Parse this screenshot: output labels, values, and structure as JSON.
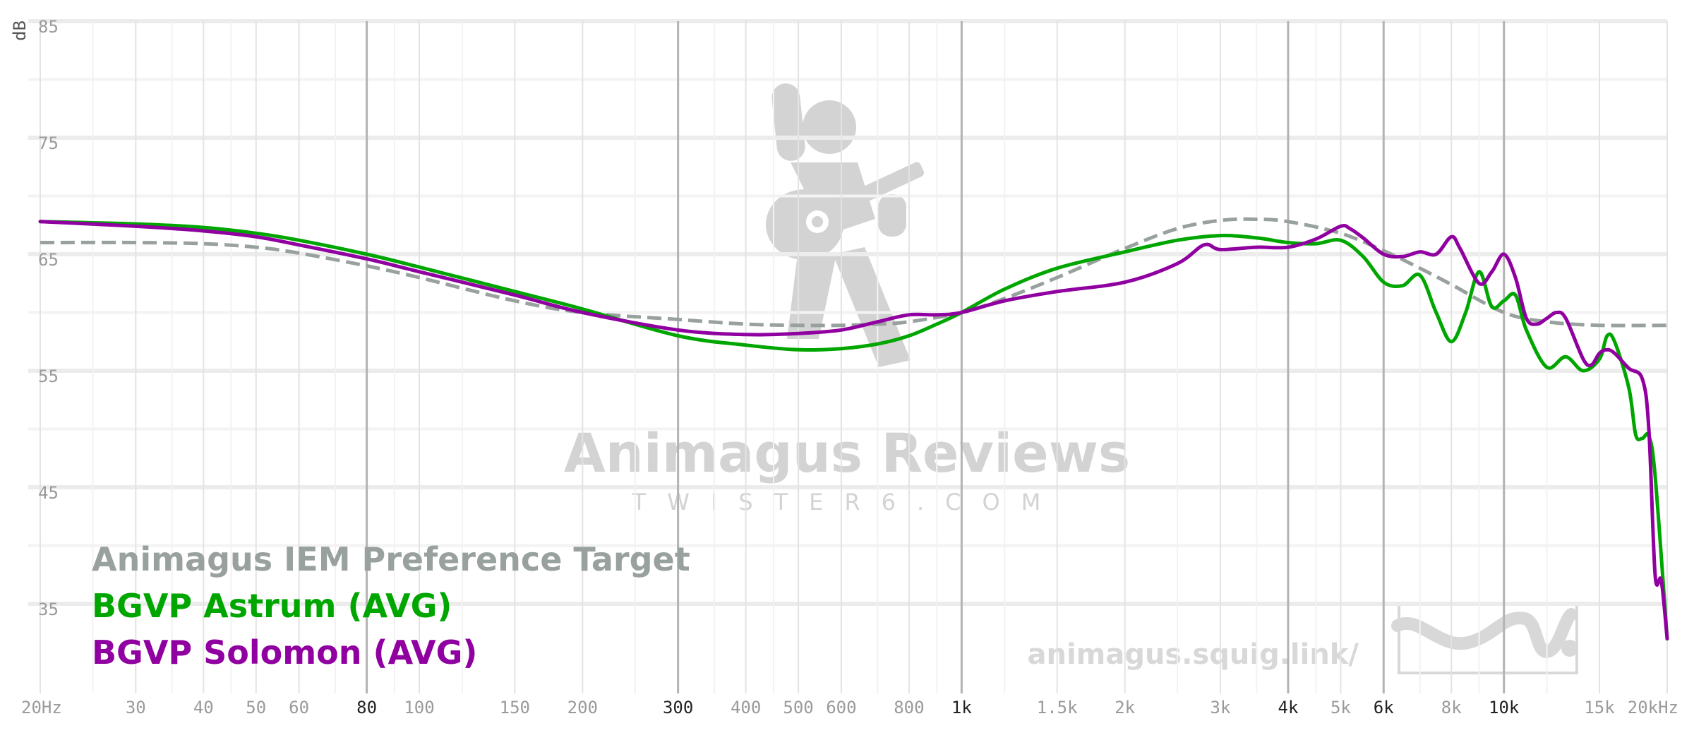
{
  "chart_data": {
    "type": "line",
    "ylabel": "dB",
    "xlabel": "",
    "x_scale": "log",
    "xlim": [
      20,
      20000
    ],
    "ylim": [
      30,
      87
    ],
    "y_ticks": [
      {
        "value": 85,
        "label": "85"
      },
      {
        "value": 75,
        "label": "75"
      },
      {
        "value": 65,
        "label": "65"
      },
      {
        "value": 55,
        "label": "55"
      },
      {
        "value": 45,
        "label": "45"
      },
      {
        "value": 35,
        "label": "35"
      }
    ],
    "y_minor_lines": [
      80,
      70,
      60,
      50,
      40
    ],
    "x_ticks": [
      {
        "value": 20,
        "label": "20Hz",
        "major": false
      },
      {
        "value": 30,
        "label": "30",
        "major": false
      },
      {
        "value": 40,
        "label": "40",
        "major": false
      },
      {
        "value": 50,
        "label": "50",
        "major": false
      },
      {
        "value": 60,
        "label": "60",
        "major": false
      },
      {
        "value": 80,
        "label": "80",
        "major": true
      },
      {
        "value": 100,
        "label": "100",
        "major": false
      },
      {
        "value": 150,
        "label": "150",
        "major": false
      },
      {
        "value": 200,
        "label": "200",
        "major": false
      },
      {
        "value": 300,
        "label": "300",
        "major": true
      },
      {
        "value": 400,
        "label": "400",
        "major": false
      },
      {
        "value": 500,
        "label": "500",
        "major": false
      },
      {
        "value": 600,
        "label": "600",
        "major": false
      },
      {
        "value": 800,
        "label": "800",
        "major": false
      },
      {
        "value": 1000,
        "label": "1k",
        "major": true
      },
      {
        "value": 1500,
        "label": "1.5k",
        "major": false
      },
      {
        "value": 2000,
        "label": "2k",
        "major": false
      },
      {
        "value": 3000,
        "label": "3k",
        "major": false
      },
      {
        "value": 4000,
        "label": "4k",
        "major": true
      },
      {
        "value": 5000,
        "label": "5k",
        "major": false
      },
      {
        "value": 6000,
        "label": "6k",
        "major": true
      },
      {
        "value": 8000,
        "label": "8k",
        "major": false
      },
      {
        "value": 10000,
        "label": "10k",
        "major": true
      },
      {
        "value": 15000,
        "label": "15k",
        "major": false
      },
      {
        "value": 20000,
        "label": "20kHz",
        "major": false
      }
    ],
    "x_minor_lines": [
      25,
      35,
      45,
      70,
      90,
      120,
      250,
      350,
      450,
      700,
      900,
      1200,
      2500,
      3500,
      4500,
      7000,
      9000,
      12000
    ],
    "grid": true,
    "legend_position": "bottom-left",
    "series": [
      {
        "name": "Animagus IEM Preference Target",
        "color": "#99a19e",
        "dash": true,
        "points": [
          [
            20,
            66.0
          ],
          [
            30,
            66.0
          ],
          [
            40,
            65.9
          ],
          [
            50,
            65.6
          ],
          [
            60,
            65.1
          ],
          [
            80,
            64.0
          ],
          [
            100,
            63.0
          ],
          [
            150,
            61.0
          ],
          [
            200,
            60.0
          ],
          [
            300,
            59.4
          ],
          [
            400,
            59.0
          ],
          [
            500,
            58.9
          ],
          [
            600,
            58.9
          ],
          [
            700,
            59.0
          ],
          [
            800,
            59.2
          ],
          [
            1000,
            60.0
          ],
          [
            1200,
            61.2
          ],
          [
            1500,
            63.0
          ],
          [
            2000,
            65.5
          ],
          [
            2500,
            67.2
          ],
          [
            3000,
            67.9
          ],
          [
            3500,
            68.0
          ],
          [
            4000,
            67.8
          ],
          [
            5000,
            66.8
          ],
          [
            6000,
            65.3
          ],
          [
            7000,
            63.8
          ],
          [
            8000,
            62.4
          ],
          [
            10000,
            60.0
          ],
          [
            12000,
            59.2
          ],
          [
            15000,
            58.9
          ],
          [
            20000,
            58.9
          ]
        ]
      },
      {
        "name": "BGVP Astrum (AVG)",
        "color": "#00a600",
        "dash": false,
        "points": [
          [
            20,
            67.8
          ],
          [
            30,
            67.6
          ],
          [
            40,
            67.3
          ],
          [
            50,
            66.8
          ],
          [
            60,
            66.2
          ],
          [
            80,
            65.0
          ],
          [
            100,
            63.9
          ],
          [
            150,
            61.8
          ],
          [
            200,
            60.3
          ],
          [
            300,
            58.0
          ],
          [
            400,
            57.2
          ],
          [
            500,
            56.8
          ],
          [
            600,
            56.9
          ],
          [
            700,
            57.3
          ],
          [
            800,
            58.0
          ],
          [
            900,
            59.0
          ],
          [
            1000,
            60.0
          ],
          [
            1200,
            62.0
          ],
          [
            1500,
            63.8
          ],
          [
            2000,
            65.2
          ],
          [
            2500,
            66.2
          ],
          [
            3000,
            66.6
          ],
          [
            3500,
            66.4
          ],
          [
            4000,
            66.0
          ],
          [
            4500,
            65.9
          ],
          [
            5000,
            66.2
          ],
          [
            5500,
            64.8
          ],
          [
            6000,
            62.6
          ],
          [
            6500,
            62.3
          ],
          [
            7000,
            63.2
          ],
          [
            7500,
            60.0
          ],
          [
            8000,
            57.5
          ],
          [
            8500,
            60.0
          ],
          [
            9000,
            63.5
          ],
          [
            9500,
            60.5
          ],
          [
            10000,
            61.0
          ],
          [
            10500,
            61.5
          ],
          [
            11000,
            58.5
          ],
          [
            12000,
            55.3
          ],
          [
            13000,
            56.2
          ],
          [
            14000,
            55.0
          ],
          [
            15000,
            56.0
          ],
          [
            15500,
            58.0
          ],
          [
            16000,
            57.5
          ],
          [
            17000,
            53.5
          ],
          [
            17500,
            49.5
          ],
          [
            18000,
            49.2
          ],
          [
            18500,
            49.4
          ],
          [
            19000,
            46.0
          ],
          [
            20000,
            32.0
          ]
        ]
      },
      {
        "name": "BGVP Solomon (AVG)",
        "color": "#9000a0",
        "dash": false,
        "points": [
          [
            20,
            67.8
          ],
          [
            30,
            67.4
          ],
          [
            40,
            67.0
          ],
          [
            50,
            66.5
          ],
          [
            60,
            65.8
          ],
          [
            80,
            64.6
          ],
          [
            100,
            63.5
          ],
          [
            150,
            61.5
          ],
          [
            200,
            60.0
          ],
          [
            300,
            58.5
          ],
          [
            400,
            58.1
          ],
          [
            500,
            58.2
          ],
          [
            600,
            58.5
          ],
          [
            700,
            59.2
          ],
          [
            800,
            59.8
          ],
          [
            900,
            59.8
          ],
          [
            1000,
            60.0
          ],
          [
            1200,
            61.0
          ],
          [
            1500,
            61.8
          ],
          [
            2000,
            62.6
          ],
          [
            2500,
            64.2
          ],
          [
            2800,
            65.8
          ],
          [
            3000,
            65.4
          ],
          [
            3500,
            65.6
          ],
          [
            4000,
            65.6
          ],
          [
            4500,
            66.3
          ],
          [
            5000,
            67.4
          ],
          [
            5200,
            67.2
          ],
          [
            5500,
            66.4
          ],
          [
            6000,
            65.0
          ],
          [
            6500,
            64.8
          ],
          [
            7000,
            65.2
          ],
          [
            7500,
            65.0
          ],
          [
            8000,
            66.5
          ],
          [
            8300,
            65.5
          ],
          [
            9000,
            62.5
          ],
          [
            9500,
            63.5
          ],
          [
            10000,
            65.0
          ],
          [
            10500,
            63.0
          ],
          [
            11000,
            59.5
          ],
          [
            11500,
            59.0
          ],
          [
            12000,
            59.5
          ],
          [
            12500,
            60.0
          ],
          [
            13000,
            59.5
          ],
          [
            14000,
            56.0
          ],
          [
            14500,
            55.5
          ],
          [
            15000,
            56.5
          ],
          [
            15500,
            56.8
          ],
          [
            16000,
            56.5
          ],
          [
            17000,
            55.2
          ],
          [
            18000,
            54.3
          ],
          [
            18500,
            50.0
          ],
          [
            19000,
            37.5
          ],
          [
            19500,
            37.0
          ],
          [
            20000,
            32.0
          ]
        ]
      }
    ]
  },
  "watermark": {
    "title": "Animagus Reviews",
    "subtitle": "TWISTER6.COM",
    "url": "animagus.squig.link/",
    "mascot_icon": "guitar-player-icon",
    "squig_logo_icon": "squiggle-logo-icon"
  }
}
